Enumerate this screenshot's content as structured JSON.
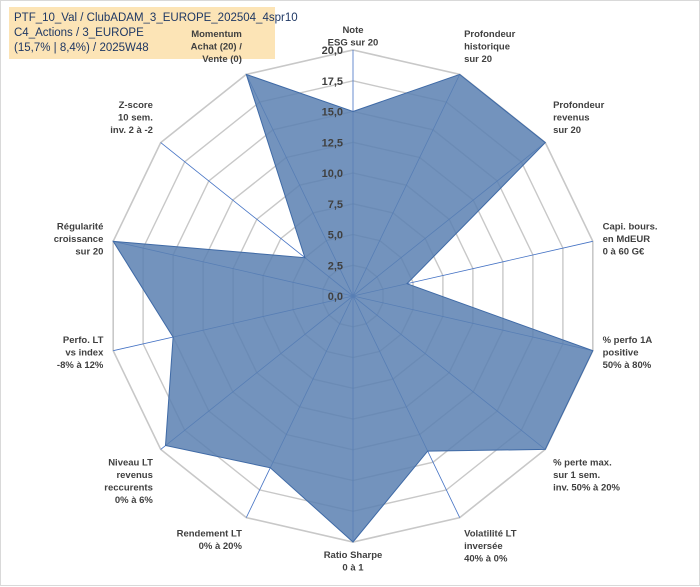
{
  "title_lines": [
    "PTF_10_Val / ClubADAM_3_EUROPE_202504_4spr10",
    "C4_Actions / 3_EUROPE",
    "(15,7% | 8,4%) / 2025W48"
  ],
  "chart_data": {
    "type": "radar",
    "rmin": 0,
    "rmax": 20,
    "tick_step": 2.5,
    "tick_labels": [
      "0,0",
      "2,5",
      "5,0",
      "7,5",
      "10,0",
      "12,5",
      "15,0",
      "17,5",
      "20,0"
    ],
    "grid": true,
    "colors": {
      "fill": "#5b80b2",
      "stroke": "#3f6aa6",
      "grid": "#c8c8c8",
      "spoke": "#4472c4"
    },
    "axes": [
      {
        "label": [
          "Note",
          "ESG sur 20"
        ]
      },
      {
        "label": [
          "Profondeur",
          "historique",
          "sur 20"
        ]
      },
      {
        "label": [
          "Profondeur",
          "revenus",
          "sur 20"
        ]
      },
      {
        "label": [
          "Capi. bours.",
          "en MdEUR",
          "0 à 60 G€"
        ]
      },
      {
        "label": [
          "% perfo 1A",
          "positive",
          "50% à 80%"
        ]
      },
      {
        "label": [
          "% perte max.",
          "sur 1 sem.",
          "inv. 50% à 20%"
        ]
      },
      {
        "label": [
          "Volatilité LT",
          "inversée",
          "40% à 0%"
        ]
      },
      {
        "label": [
          "Ratio Sharpe",
          "0 à 1"
        ]
      },
      {
        "label": [
          "Rendement LT",
          "0% à 20%"
        ]
      },
      {
        "label": [
          "Niveau LT",
          "revenus",
          "reccurents",
          "0% à 6%"
        ]
      },
      {
        "label": [
          "Perfo. LT",
          "vs index",
          "-8% à 12%"
        ]
      },
      {
        "label": [
          "Régularité",
          "croissance",
          "sur 20"
        ]
      },
      {
        "label": [
          "Z-score",
          "10 sem.",
          "inv. 2 à -2"
        ]
      },
      {
        "label": [
          "Momentum",
          "Achat (20) /",
          "Vente (0)"
        ]
      }
    ],
    "values": [
      15,
      20,
      20,
      4.5,
      20,
      20,
      14,
      20,
      15.5,
      19.5,
      15,
      20,
      5,
      20
    ]
  }
}
